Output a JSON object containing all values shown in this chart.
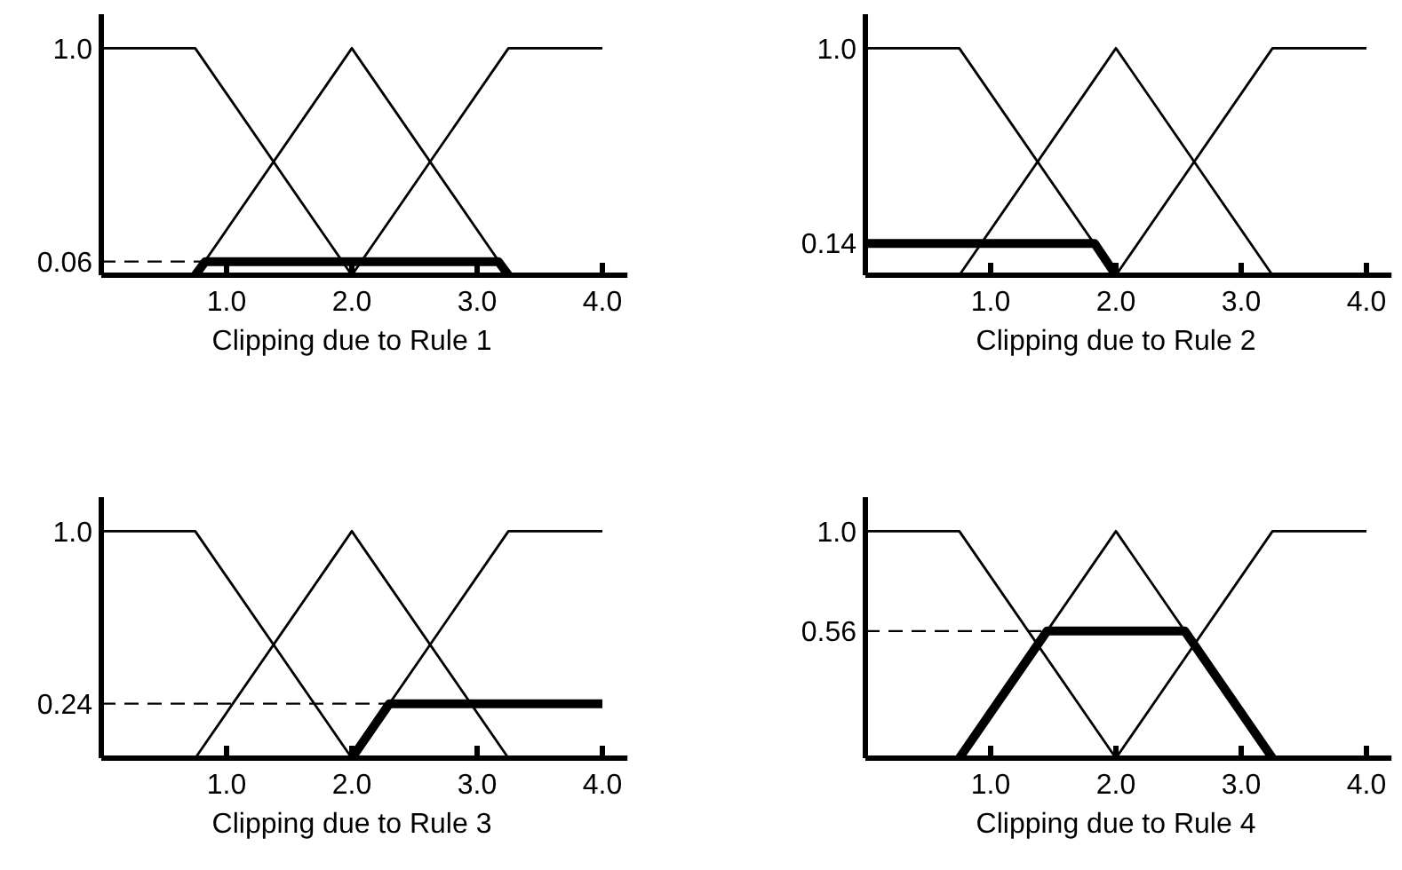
{
  "chart_data": [
    {
      "type": "line",
      "xlabel": "Clipping due to Rule 1",
      "xlim": [
        0,
        4.2
      ],
      "ylim": [
        0,
        1.15
      ],
      "xticks": [
        {
          "value": 1,
          "label": "1.0"
        },
        {
          "value": 2,
          "label": "2.0"
        },
        {
          "value": 3,
          "label": "3.0"
        },
        {
          "value": 4,
          "label": "4.0"
        }
      ],
      "yticks": [
        {
          "value": 0.06,
          "label": "0.06"
        },
        {
          "value": 1,
          "label": "1.0"
        }
      ],
      "grid": false,
      "marker": "none",
      "ref_lines": [
        {
          "axis": "y",
          "value": 0.06,
          "label": null,
          "line_style": "dashed",
          "color": "#000000"
        }
      ],
      "series": [
        {
          "color": "#000000",
          "x": [
            0,
            0.75,
            2
          ],
          "values": [
            1,
            1,
            0
          ]
        },
        {
          "color": "#000000",
          "x": [
            0.75,
            2,
            3.25
          ],
          "values": [
            0,
            1,
            0
          ]
        },
        {
          "color": "#000000",
          "x": [
            2,
            3.25,
            4
          ],
          "values": [
            0,
            1,
            1
          ]
        },
        {
          "color": "#000000",
          "x": [
            0.75,
            0.83,
            3.17,
            3.25
          ],
          "values": [
            0,
            0.06,
            0.06,
            0
          ]
        }
      ]
    },
    {
      "type": "line",
      "xlabel": "Clipping due to Rule 2",
      "xlim": [
        0,
        4.2
      ],
      "ylim": [
        0,
        1.15
      ],
      "xticks": [
        {
          "value": 1,
          "label": "1.0"
        },
        {
          "value": 2,
          "label": "2.0"
        },
        {
          "value": 3,
          "label": "3.0"
        },
        {
          "value": 4,
          "label": "4.0"
        }
      ],
      "yticks": [
        {
          "value": 0.14,
          "label": "0.14"
        },
        {
          "value": 1,
          "label": "1.0"
        }
      ],
      "grid": false,
      "marker": "none",
      "series": [
        {
          "color": "#000000",
          "x": [
            0,
            0.75,
            2
          ],
          "values": [
            1,
            1,
            0
          ]
        },
        {
          "color": "#000000",
          "x": [
            0.75,
            2,
            3.25
          ],
          "values": [
            0,
            1,
            0
          ]
        },
        {
          "color": "#000000",
          "x": [
            2,
            3.25,
            4
          ],
          "values": [
            0,
            1,
            1
          ]
        },
        {
          "color": "#000000",
          "x": [
            0,
            1.83,
            2
          ],
          "values": [
            0.14,
            0.14,
            0
          ]
        }
      ]
    },
    {
      "type": "line",
      "xlabel": "Clipping due to Rule 3",
      "xlim": [
        0,
        4.2
      ],
      "ylim": [
        0,
        1.15
      ],
      "xticks": [
        {
          "value": 1,
          "label": "1.0"
        },
        {
          "value": 2,
          "label": "2.0"
        },
        {
          "value": 3,
          "label": "3.0"
        },
        {
          "value": 4,
          "label": "4.0"
        }
      ],
      "yticks": [
        {
          "value": 0.24,
          "label": "0.24"
        },
        {
          "value": 1,
          "label": "1.0"
        }
      ],
      "grid": false,
      "marker": "none",
      "ref_lines": [
        {
          "axis": "y",
          "value": 0.24,
          "label": null,
          "line_style": "dashed",
          "color": "#000000"
        }
      ],
      "series": [
        {
          "color": "#000000",
          "x": [
            0,
            0.75,
            2
          ],
          "values": [
            1,
            1,
            0
          ]
        },
        {
          "color": "#000000",
          "x": [
            0.75,
            2,
            3.25
          ],
          "values": [
            0,
            1,
            0
          ]
        },
        {
          "color": "#000000",
          "x": [
            2,
            3.25,
            4
          ],
          "values": [
            0,
            1,
            1
          ]
        },
        {
          "color": "#000000",
          "x": [
            2,
            2.3,
            4
          ],
          "values": [
            0,
            0.24,
            0.24
          ]
        }
      ]
    },
    {
      "type": "line",
      "xlabel": "Clipping due to Rule 4",
      "xlim": [
        0,
        4.2
      ],
      "ylim": [
        0,
        1.15
      ],
      "xticks": [
        {
          "value": 1,
          "label": "1.0"
        },
        {
          "value": 2,
          "label": "2.0"
        },
        {
          "value": 3,
          "label": "3.0"
        },
        {
          "value": 4,
          "label": "4.0"
        }
      ],
      "yticks": [
        {
          "value": 0.56,
          "label": "0.56"
        },
        {
          "value": 1,
          "label": "1.0"
        }
      ],
      "grid": false,
      "marker": "none",
      "ref_lines": [
        {
          "axis": "y",
          "value": 0.56,
          "label": null,
          "line_style": "dashed",
          "color": "#000000"
        }
      ],
      "series": [
        {
          "color": "#000000",
          "x": [
            0,
            0.75,
            2
          ],
          "values": [
            1,
            1,
            0
          ]
        },
        {
          "color": "#000000",
          "x": [
            0.75,
            2,
            3.25
          ],
          "values": [
            0,
            1,
            0
          ]
        },
        {
          "color": "#000000",
          "x": [
            2,
            3.25,
            4
          ],
          "values": [
            0,
            1,
            1
          ]
        },
        {
          "color": "#000000",
          "x": [
            0.75,
            1.45,
            2.55,
            3.25
          ],
          "values": [
            0,
            0.56,
            0.56,
            0
          ]
        }
      ]
    }
  ]
}
